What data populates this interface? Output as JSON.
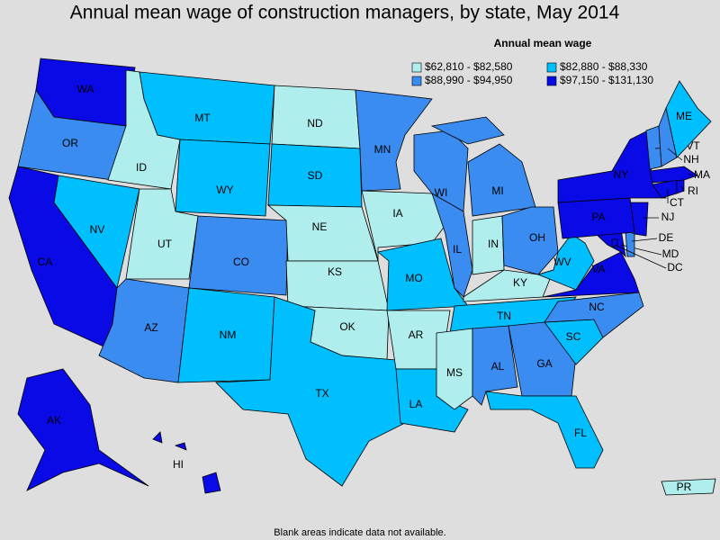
{
  "title": "Annual mean wage of construction managers, by state, May 2014",
  "legend": {
    "title": "Annual mean wage",
    "items": [
      {
        "label": "$62,810 - $82,580",
        "color": "#b0eeee"
      },
      {
        "label": "$82,880 - $88,330",
        "color": "#00bfff"
      },
      {
        "label": "$88,990 - $94,950",
        "color": "#3a8cf0"
      },
      {
        "label": "$97,150 - $131,130",
        "color": "#0a0ae6"
      }
    ]
  },
  "states": [
    {
      "name": "WA",
      "bin": 3
    },
    {
      "name": "OR",
      "bin": 2
    },
    {
      "name": "CA",
      "bin": 3
    },
    {
      "name": "NV",
      "bin": 1
    },
    {
      "name": "ID",
      "bin": 0
    },
    {
      "name": "MT",
      "bin": 1
    },
    {
      "name": "WY",
      "bin": 1
    },
    {
      "name": "UT",
      "bin": 0
    },
    {
      "name": "CO",
      "bin": 2
    },
    {
      "name": "AZ",
      "bin": 2
    },
    {
      "name": "NM",
      "bin": 1
    },
    {
      "name": "ND",
      "bin": 0
    },
    {
      "name": "SD",
      "bin": 1
    },
    {
      "name": "NE",
      "bin": 0
    },
    {
      "name": "KS",
      "bin": 0
    },
    {
      "name": "OK",
      "bin": 0
    },
    {
      "name": "TX",
      "bin": 1
    },
    {
      "name": "MN",
      "bin": 2
    },
    {
      "name": "IA",
      "bin": 0
    },
    {
      "name": "MO",
      "bin": 1
    },
    {
      "name": "AR",
      "bin": 0
    },
    {
      "name": "LA",
      "bin": 1
    },
    {
      "name": "WI",
      "bin": 2
    },
    {
      "name": "IL",
      "bin": 2
    },
    {
      "name": "MI",
      "bin": 2
    },
    {
      "name": "IN",
      "bin": 0
    },
    {
      "name": "OH",
      "bin": 2
    },
    {
      "name": "KY",
      "bin": 0
    },
    {
      "name": "TN",
      "bin": 1
    },
    {
      "name": "MS",
      "bin": 0
    },
    {
      "name": "AL",
      "bin": 2
    },
    {
      "name": "GA",
      "bin": 2
    },
    {
      "name": "FL",
      "bin": 1
    },
    {
      "name": "SC",
      "bin": 1
    },
    {
      "name": "NC",
      "bin": 2
    },
    {
      "name": "VA",
      "bin": 3
    },
    {
      "name": "WV",
      "bin": 1
    },
    {
      "name": "MD",
      "bin": 3
    },
    {
      "name": "DE",
      "bin": 2
    },
    {
      "name": "NJ",
      "bin": 3
    },
    {
      "name": "PA",
      "bin": 3
    },
    {
      "name": "NY",
      "bin": 3
    },
    {
      "name": "CT",
      "bin": 3
    },
    {
      "name": "RI",
      "bin": 3
    },
    {
      "name": "MA",
      "bin": 3
    },
    {
      "name": "VT",
      "bin": 2
    },
    {
      "name": "NH",
      "bin": 2
    },
    {
      "name": "ME",
      "bin": 1
    },
    {
      "name": "AK",
      "bin": 3
    },
    {
      "name": "HI",
      "bin": 3
    },
    {
      "name": "PR",
      "bin": 0
    },
    {
      "name": "DC",
      "bin": 3
    }
  ],
  "note": "Blank areas indicate data not available."
}
